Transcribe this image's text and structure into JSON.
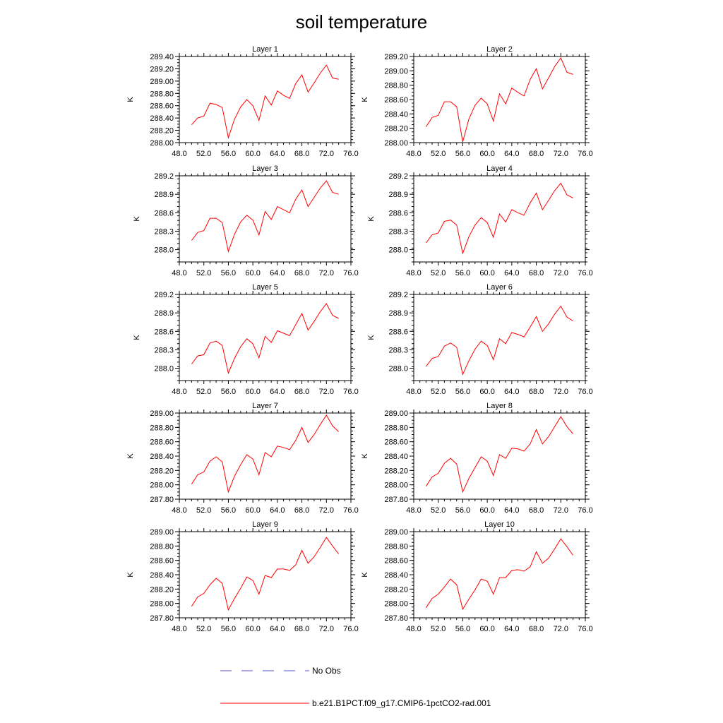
{
  "figure": {
    "title": "soil temperature",
    "legend": [
      {
        "label": "No Obs",
        "color": "#5555cc",
        "style": "dashed"
      },
      {
        "label": "b.e21.B1PCT.f09_g17.CMIP6-1pctCO2-rad.001",
        "color": "#ff0000",
        "style": "solid"
      }
    ]
  },
  "chart_data": [
    {
      "type": "line",
      "title": "Layer 1",
      "ylabel": "K",
      "xlim": [
        48,
        76
      ],
      "ylim": [
        288.0,
        289.4
      ],
      "xticks": [
        "48.0",
        "52.0",
        "56.0",
        "60.0",
        "64.0",
        "68.0",
        "72.0",
        "76.0"
      ],
      "yticks": [
        "288.00",
        "288.20",
        "288.40",
        "288.60",
        "288.80",
        "289.00",
        "289.20",
        "289.40"
      ],
      "x": [
        50,
        51,
        52,
        53,
        54,
        55,
        56,
        57,
        58,
        59,
        60,
        61,
        62,
        63,
        64,
        65,
        66,
        67,
        68,
        69,
        70,
        71,
        72,
        73,
        74
      ],
      "series": [
        {
          "name": "b.e21.B1PCT.f09_g17.CMIP6-1pctCO2-rad.001",
          "color": "#ff0000",
          "values": [
            288.29,
            288.4,
            288.43,
            288.64,
            288.62,
            288.57,
            288.08,
            288.38,
            288.58,
            288.7,
            288.6,
            288.36,
            288.76,
            288.61,
            288.84,
            288.77,
            288.72,
            288.96,
            289.1,
            288.82,
            288.97,
            289.13,
            289.26,
            289.05,
            289.03
          ]
        }
      ]
    },
    {
      "type": "line",
      "title": "Layer 2",
      "ylabel": "K",
      "xlim": [
        48,
        76
      ],
      "ylim": [
        288.0,
        289.2
      ],
      "xticks": [
        "48.0",
        "52.0",
        "56.0",
        "60.0",
        "64.0",
        "68.0",
        "72.0",
        "76.0"
      ],
      "yticks": [
        "288.00",
        "288.20",
        "288.40",
        "288.60",
        "288.80",
        "289.00",
        "289.20"
      ],
      "x": [
        50,
        51,
        52,
        53,
        54,
        55,
        56,
        57,
        58,
        59,
        60,
        61,
        62,
        63,
        64,
        65,
        66,
        67,
        68,
        69,
        70,
        71,
        72,
        73,
        74
      ],
      "series": [
        {
          "name": "b.e21.B1PCT.f09_g17.CMIP6-1pctCO2-rad.001",
          "color": "#ff0000",
          "values": [
            288.22,
            288.35,
            288.38,
            288.57,
            288.57,
            288.5,
            288.01,
            288.33,
            288.52,
            288.62,
            288.54,
            288.3,
            288.68,
            288.54,
            288.76,
            288.7,
            288.65,
            288.88,
            289.03,
            288.75,
            288.9,
            289.06,
            289.18,
            288.98,
            288.95
          ]
        }
      ]
    },
    {
      "type": "line",
      "title": "Layer 3",
      "ylabel": "K",
      "xlim": [
        48,
        76
      ],
      "ylim": [
        287.8,
        289.2
      ],
      "xticks": [
        "48.0",
        "52.0",
        "56.0",
        "60.0",
        "64.0",
        "68.0",
        "72.0",
        "76.0"
      ],
      "yticks": [
        "288.0",
        "288.3",
        "288.6",
        "288.9",
        "289.2"
      ],
      "x": [
        50,
        51,
        52,
        53,
        54,
        55,
        56,
        57,
        58,
        59,
        60,
        61,
        62,
        63,
        64,
        65,
        66,
        67,
        68,
        69,
        70,
        71,
        72,
        73,
        74
      ],
      "series": [
        {
          "name": "b.e21.B1PCT.f09_g17.CMIP6-1pctCO2-rad.001",
          "color": "#ff0000",
          "values": [
            288.15,
            288.28,
            288.31,
            288.51,
            288.51,
            288.44,
            287.97,
            288.25,
            288.45,
            288.56,
            288.48,
            288.24,
            288.62,
            288.49,
            288.7,
            288.65,
            288.6,
            288.82,
            288.97,
            288.7,
            288.85,
            289.0,
            289.12,
            288.93,
            288.9
          ]
        }
      ]
    },
    {
      "type": "line",
      "title": "Layer 4",
      "ylabel": "K",
      "xlim": [
        48,
        76
      ],
      "ylim": [
        287.8,
        289.2
      ],
      "xticks": [
        "48.0",
        "52.0",
        "56.0",
        "60.0",
        "64.0",
        "68.0",
        "72.0",
        "76.0"
      ],
      "yticks": [
        "288.0",
        "288.3",
        "288.6",
        "288.9",
        "289.2"
      ],
      "x": [
        50,
        51,
        52,
        53,
        54,
        55,
        56,
        57,
        58,
        59,
        60,
        61,
        62,
        63,
        64,
        65,
        66,
        67,
        68,
        69,
        70,
        71,
        72,
        73,
        74
      ],
      "series": [
        {
          "name": "b.e21.B1PCT.f09_g17.CMIP6-1pctCO2-rad.001",
          "color": "#ff0000",
          "values": [
            288.11,
            288.24,
            288.27,
            288.46,
            288.48,
            288.4,
            287.94,
            288.21,
            288.4,
            288.52,
            288.44,
            288.2,
            288.58,
            288.45,
            288.65,
            288.6,
            288.56,
            288.76,
            288.92,
            288.65,
            288.8,
            288.96,
            289.08,
            288.89,
            288.84
          ]
        }
      ]
    },
    {
      "type": "line",
      "title": "Layer 5",
      "ylabel": "K",
      "xlim": [
        48,
        76
      ],
      "ylim": [
        287.8,
        289.2
      ],
      "xticks": [
        "48.0",
        "52.0",
        "56.0",
        "60.0",
        "64.0",
        "68.0",
        "72.0",
        "76.0"
      ],
      "yticks": [
        "288.0",
        "288.3",
        "288.6",
        "288.9",
        "289.2"
      ],
      "x": [
        50,
        51,
        52,
        53,
        54,
        55,
        56,
        57,
        58,
        59,
        60,
        61,
        62,
        63,
        64,
        65,
        66,
        67,
        68,
        69,
        70,
        71,
        72,
        73,
        74
      ],
      "series": [
        {
          "name": "b.e21.B1PCT.f09_g17.CMIP6-1pctCO2-rad.001",
          "color": "#ff0000",
          "values": [
            288.07,
            288.2,
            288.22,
            288.41,
            288.44,
            288.37,
            287.92,
            288.16,
            288.35,
            288.48,
            288.4,
            288.17,
            288.52,
            288.42,
            288.61,
            288.57,
            288.53,
            288.71,
            288.89,
            288.62,
            288.76,
            288.92,
            289.05,
            288.86,
            288.81
          ]
        }
      ]
    },
    {
      "type": "line",
      "title": "Layer 6",
      "ylabel": "K",
      "xlim": [
        48,
        76
      ],
      "ylim": [
        287.8,
        289.2
      ],
      "xticks": [
        "48.0",
        "52.0",
        "56.0",
        "60.0",
        "64.0",
        "68.0",
        "72.0",
        "76.0"
      ],
      "yticks": [
        "288.0",
        "288.3",
        "288.6",
        "288.9",
        "289.2"
      ],
      "x": [
        50,
        51,
        52,
        53,
        54,
        55,
        56,
        57,
        58,
        59,
        60,
        61,
        62,
        63,
        64,
        65,
        66,
        67,
        68,
        69,
        70,
        71,
        72,
        73,
        74
      ],
      "series": [
        {
          "name": "b.e21.B1PCT.f09_g17.CMIP6-1pctCO2-rad.001",
          "color": "#ff0000",
          "values": [
            288.03,
            288.16,
            288.19,
            288.36,
            288.41,
            288.34,
            287.9,
            288.12,
            288.31,
            288.44,
            288.37,
            288.14,
            288.48,
            288.4,
            288.58,
            288.55,
            288.51,
            288.67,
            288.84,
            288.6,
            288.72,
            288.88,
            289.01,
            288.83,
            288.77
          ]
        }
      ]
    },
    {
      "type": "line",
      "title": "Layer 7",
      "ylabel": "K",
      "xlim": [
        48,
        76
      ],
      "ylim": [
        287.8,
        289.0
      ],
      "xticks": [
        "48.0",
        "52.0",
        "56.0",
        "60.0",
        "64.0",
        "68.0",
        "72.0",
        "76.0"
      ],
      "yticks": [
        "287.80",
        "288.00",
        "288.20",
        "288.40",
        "288.60",
        "288.80",
        "289.00"
      ],
      "x": [
        50,
        51,
        52,
        53,
        54,
        55,
        56,
        57,
        58,
        59,
        60,
        61,
        62,
        63,
        64,
        65,
        66,
        67,
        68,
        69,
        70,
        71,
        72,
        73,
        74
      ],
      "series": [
        {
          "name": "b.e21.B1PCT.f09_g17.CMIP6-1pctCO2-rad.001",
          "color": "#ff0000",
          "values": [
            288.01,
            288.14,
            288.18,
            288.33,
            288.39,
            288.32,
            287.9,
            288.12,
            288.28,
            288.42,
            288.36,
            288.14,
            288.45,
            288.39,
            288.54,
            288.52,
            288.49,
            288.62,
            288.8,
            288.59,
            288.7,
            288.84,
            288.97,
            288.82,
            288.74
          ]
        }
      ]
    },
    {
      "type": "line",
      "title": "Layer 8",
      "ylabel": "K",
      "xlim": [
        48,
        76
      ],
      "ylim": [
        287.8,
        289.0
      ],
      "xticks": [
        "48.0",
        "52.0",
        "56.0",
        "60.0",
        "64.0",
        "68.0",
        "72.0",
        "76.0"
      ],
      "yticks": [
        "287.80",
        "288.00",
        "288.20",
        "288.40",
        "288.60",
        "288.80",
        "289.00"
      ],
      "x": [
        50,
        51,
        52,
        53,
        54,
        55,
        56,
        57,
        58,
        59,
        60,
        61,
        62,
        63,
        64,
        65,
        66,
        67,
        68,
        69,
        70,
        71,
        72,
        73,
        74
      ],
      "series": [
        {
          "name": "b.e21.B1PCT.f09_g17.CMIP6-1pctCO2-rad.001",
          "color": "#ff0000",
          "values": [
            287.98,
            288.11,
            288.16,
            288.3,
            288.37,
            288.29,
            287.9,
            288.09,
            288.24,
            288.39,
            288.33,
            288.13,
            288.42,
            288.37,
            288.51,
            288.5,
            288.47,
            288.57,
            288.77,
            288.57,
            288.67,
            288.81,
            288.95,
            288.81,
            288.71
          ]
        }
      ]
    },
    {
      "type": "line",
      "title": "Layer 9",
      "ylabel": "K",
      "xlim": [
        48,
        76
      ],
      "ylim": [
        287.8,
        289.0
      ],
      "xticks": [
        "48.0",
        "52.0",
        "56.0",
        "60.0",
        "64.0",
        "68.0",
        "72.0",
        "76.0"
      ],
      "yticks": [
        "287.80",
        "288.00",
        "288.20",
        "288.40",
        "288.60",
        "288.80",
        "289.00"
      ],
      "x": [
        50,
        51,
        52,
        53,
        54,
        55,
        56,
        57,
        58,
        59,
        60,
        61,
        62,
        63,
        64,
        65,
        66,
        67,
        68,
        69,
        70,
        71,
        72,
        73,
        74
      ],
      "series": [
        {
          "name": "b.e21.B1PCT.f09_g17.CMIP6-1pctCO2-rad.001",
          "color": "#ff0000",
          "values": [
            287.96,
            288.09,
            288.14,
            288.26,
            288.35,
            288.28,
            287.91,
            288.07,
            288.21,
            288.37,
            288.32,
            288.13,
            288.39,
            288.36,
            288.48,
            288.48,
            288.46,
            288.54,
            288.74,
            288.56,
            288.65,
            288.78,
            288.92,
            288.8,
            288.69
          ]
        }
      ]
    },
    {
      "type": "line",
      "title": "Layer 10",
      "ylabel": "K",
      "xlim": [
        48,
        76
      ],
      "ylim": [
        287.8,
        289.0
      ],
      "xticks": [
        "48.0",
        "52.0",
        "56.0",
        "60.0",
        "64.0",
        "68.0",
        "72.0",
        "76.0"
      ],
      "yticks": [
        "287.80",
        "288.00",
        "288.20",
        "288.40",
        "288.60",
        "288.80",
        "289.00"
      ],
      "x": [
        50,
        51,
        52,
        53,
        54,
        55,
        56,
        57,
        58,
        59,
        60,
        61,
        62,
        63,
        64,
        65,
        66,
        67,
        68,
        69,
        70,
        71,
        72,
        73,
        74
      ],
      "series": [
        {
          "name": "b.e21.B1PCT.f09_g17.CMIP6-1pctCO2-rad.001",
          "color": "#ff0000",
          "values": [
            287.94,
            288.07,
            288.13,
            288.23,
            288.34,
            288.26,
            287.92,
            288.06,
            288.19,
            288.34,
            288.31,
            288.13,
            288.36,
            288.36,
            288.46,
            288.47,
            288.45,
            288.51,
            288.72,
            288.56,
            288.63,
            288.76,
            288.9,
            288.79,
            288.67
          ]
        }
      ]
    }
  ]
}
